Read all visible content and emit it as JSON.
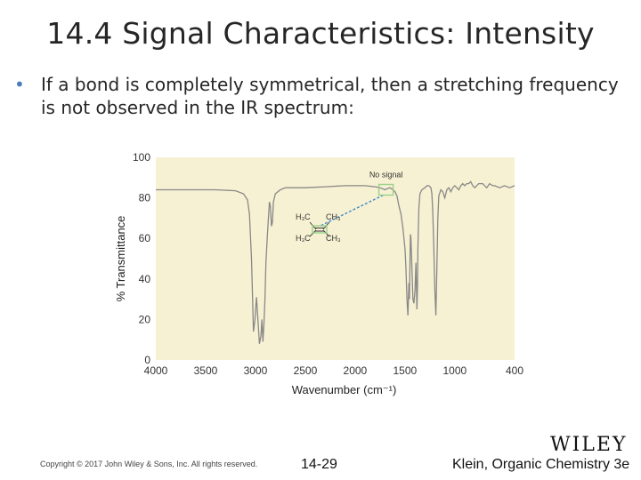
{
  "slide": {
    "title": "14.4 Signal Characteristics: Intensity",
    "bullet": "If a bond is completely symmetrical, then a stretching frequency is not observed in the IR spectrum:"
  },
  "chart_data": {
    "type": "line",
    "xlabel": "Wavenumber (cm⁻¹)",
    "ylabel": "% Transmittance",
    "xlim": [
      4000,
      400
    ],
    "ylim": [
      0,
      100
    ],
    "x_ticks": [
      "4000",
      "3500",
      "3000",
      "2500",
      "2000",
      "1500",
      "1000",
      "400"
    ],
    "x_tick_values": [
      4000,
      3500,
      3000,
      2500,
      2000,
      1500,
      1000,
      400
    ],
    "y_ticks": [
      "0",
      "20",
      "40",
      "60",
      "80",
      "100"
    ],
    "y_tick_values": [
      0,
      20,
      40,
      60,
      80,
      100
    ],
    "grid": false,
    "background": "#f7f1d3",
    "line_color": "#888888",
    "annotation": {
      "text": "No signal",
      "x": 1690,
      "y": 84,
      "box_color": "#9bd08c",
      "line_color": "#4a90c8"
    },
    "molecule_labels": {
      "top_left": "H₃C",
      "top_right": "CH₃",
      "bottom_left": "H₃C",
      "bottom_right": "CH₃"
    },
    "series": [
      {
        "x": [
          4000,
          3600,
          3400,
          3200,
          3120,
          3080,
          3060,
          3040,
          3020,
          3005,
          2990,
          2975,
          2960,
          2945,
          2935,
          2925,
          2915,
          2905,
          2895,
          2880,
          2860,
          2850,
          2840,
          2830,
          2820,
          2800,
          2750,
          2700,
          2650,
          2600,
          2500,
          2300,
          2100,
          1900,
          1800,
          1750,
          1700,
          1680,
          1650,
          1620,
          1600,
          1580,
          1560,
          1540,
          1520,
          1500,
          1490,
          1480,
          1470,
          1460,
          1455,
          1450,
          1445,
          1440,
          1430,
          1420,
          1410,
          1400,
          1390,
          1385,
          1380,
          1375,
          1370,
          1365,
          1360,
          1350,
          1330,
          1300,
          1280,
          1260,
          1240,
          1230,
          1220,
          1210,
          1200,
          1190,
          1180,
          1170,
          1160,
          1140,
          1120,
          1100,
          1080,
          1060,
          1040,
          1020,
          1000,
          980,
          960,
          940,
          920,
          900,
          880,
          860,
          840,
          820,
          800,
          780,
          760,
          740,
          720,
          700,
          680,
          650,
          620,
          600,
          550,
          500,
          450,
          400
        ],
        "y": [
          84,
          84,
          84,
          83.5,
          82,
          79,
          72,
          50,
          14,
          20,
          31,
          20,
          8,
          12,
          20,
          9,
          18,
          30,
          48,
          62,
          78,
          76,
          66,
          68,
          78,
          82,
          84,
          85,
          85,
          85,
          85,
          85.5,
          86,
          86,
          85.5,
          85,
          84,
          84.5,
          85,
          84,
          83,
          81,
          76,
          72,
          65,
          55,
          45,
          30,
          22,
          38,
          30,
          48,
          62,
          60,
          45,
          30,
          28,
          34,
          48,
          38,
          25,
          35,
          55,
          66,
          75,
          82,
          84,
          85,
          86,
          86,
          85,
          82,
          72,
          55,
          35,
          22,
          45,
          70,
          81,
          84,
          83,
          80,
          84,
          85,
          83,
          85,
          86,
          85,
          84,
          86,
          87,
          86,
          87,
          87,
          88,
          86,
          85,
          86,
          87,
          87,
          87,
          86,
          85,
          87,
          86,
          86,
          85,
          86,
          85,
          86
        ]
      }
    ]
  },
  "footer": {
    "copyright": "Copyright © 2017 John Wiley & Sons, Inc. All rights reserved.",
    "page": "14-29",
    "book": "Klein, Organic Chemistry 3e",
    "logo": "WILEY"
  }
}
